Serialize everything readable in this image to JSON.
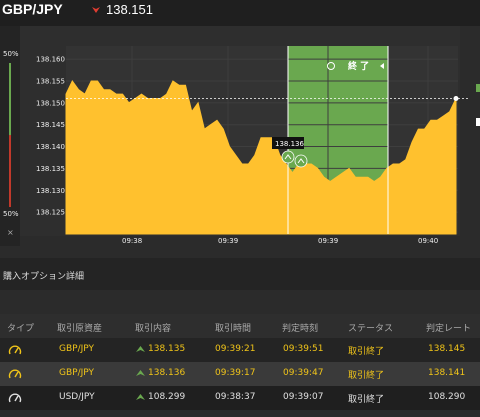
{
  "header": {
    "pair": "GBP/JPY",
    "price": "138.151",
    "direction_icon": "down-arrow-icon",
    "colors": {
      "down": "#e03c31"
    }
  },
  "chart_data": {
    "type": "area",
    "y_ticks": [
      "138.160",
      "138.155",
      "138.150",
      "138.145",
      "138.140",
      "138.135",
      "138.130",
      "138.125"
    ],
    "x_ticks": [
      "09:38",
      "09:39",
      "09:39",
      "09:40"
    ],
    "tooltip": "138.136",
    "end_label": "終 了",
    "percent_top": "50%",
    "percent_bottom": "50%",
    "ylim": [
      138.12,
      138.163
    ],
    "current_price": 138.151,
    "fill_color": "#ffc12e",
    "window_color": "#6aa84f",
    "series": [
      {
        "values": [
          138.152,
          138.155,
          138.153,
          138.152,
          138.155,
          138.155,
          138.153,
          138.153,
          138.152,
          138.152,
          138.15,
          138.151,
          138.152,
          138.151,
          138.151,
          138.151,
          138.152,
          138.155,
          138.154,
          138.154,
          138.148,
          138.15,
          138.144,
          138.145,
          138.146,
          138.144,
          138.14,
          138.138,
          138.136,
          138.136,
          138.138,
          138.142,
          138.142,
          138.142,
          138.138,
          138.136,
          138.134,
          138.136,
          138.136,
          138.136,
          138.135,
          138.133,
          138.132,
          138.133,
          138.134,
          138.135,
          138.133,
          138.133,
          138.133,
          138.132,
          138.133,
          138.135,
          138.136,
          138.136,
          138.137,
          138.141,
          138.144,
          138.144,
          138.146,
          138.146,
          138.147,
          138.148,
          138.151
        ]
      }
    ]
  },
  "section": {
    "title": "購入オプション詳細"
  },
  "table": {
    "headers": [
      "タイプ",
      "取引原資産",
      "取引内容",
      "取引時間",
      "判定時刻",
      "ステータス",
      "判定レート"
    ],
    "rows": [
      {
        "asset": "GBP/JPY",
        "content": "138.135",
        "time": "09:39:21",
        "judge": "09:39:51",
        "status": "取引終了",
        "rate": "138.145",
        "tone": "yellow"
      },
      {
        "asset": "GBP/JPY",
        "content": "138.136",
        "time": "09:39:17",
        "judge": "09:39:47",
        "status": "取引終了",
        "rate": "138.141",
        "tone": "yellow"
      },
      {
        "asset": "USD/JPY",
        "content": "108.299",
        "time": "09:38:37",
        "judge": "09:39:07",
        "status": "取引終了",
        "rate": "108.290",
        "tone": "white"
      }
    ],
    "type_icon": "gauge-icon",
    "content_icon": "up-arrow-icon"
  }
}
